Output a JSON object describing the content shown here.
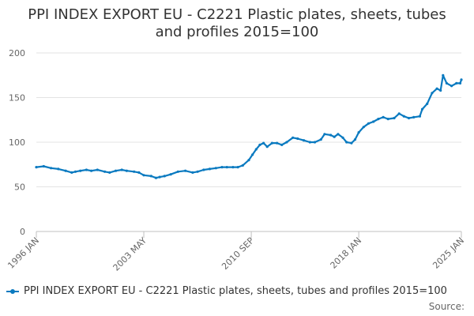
{
  "chart_data": {
    "type": "line",
    "title": "PPI INDEX EXPORT EU - C2221 Plastic plates, sheets, tubes and profiles 2015=100",
    "title_lines": [
      "PPI INDEX EXPORT EU - C2221 Plastic plates, sheets, tubes",
      "and profiles 2015=100"
    ],
    "xlabel": "",
    "ylabel": "",
    "ylim": [
      0,
      200
    ],
    "yticks": [
      "0",
      "50",
      "100",
      "150",
      "200"
    ],
    "xlim": [
      "1996-01",
      "2025-01"
    ],
    "xticks": [
      {
        "label": "1996 JAN",
        "date": "1996-01"
      },
      {
        "label": "2003 MAY",
        "date": "2003-05"
      },
      {
        "label": "2010 SEP",
        "date": "2010-09"
      },
      {
        "label": "2018 JAN",
        "date": "2018-01"
      },
      {
        "label": "2025 JAN",
        "date": "2025-01"
      }
    ],
    "grid": true,
    "legend_position": "bottom",
    "series": [
      {
        "name": "PPI INDEX EXPORT EU - C2221 Plastic plates, sheets, tubes and profiles 2015=100",
        "color": "#0a7ac0",
        "points": [
          [
            "1996-01",
            72
          ],
          [
            "1996-07",
            73
          ],
          [
            "1997-01",
            71
          ],
          [
            "1997-07",
            70
          ],
          [
            "1998-01",
            68
          ],
          [
            "1998-06",
            66
          ],
          [
            "1998-09",
            67
          ],
          [
            "1999-01",
            68
          ],
          [
            "1999-06",
            69
          ],
          [
            "1999-10",
            68
          ],
          [
            "2000-03",
            69
          ],
          [
            "2000-09",
            67
          ],
          [
            "2001-01",
            66
          ],
          [
            "2001-06",
            68
          ],
          [
            "2001-11",
            69
          ],
          [
            "2002-03",
            68
          ],
          [
            "2002-09",
            67
          ],
          [
            "2003-01",
            66
          ],
          [
            "2003-05",
            63
          ],
          [
            "2003-11",
            62
          ],
          [
            "2004-03",
            60
          ],
          [
            "2004-06",
            61
          ],
          [
            "2004-10",
            62
          ],
          [
            "2005-03",
            64
          ],
          [
            "2005-09",
            67
          ],
          [
            "2006-03",
            68
          ],
          [
            "2006-09",
            66
          ],
          [
            "2007-01",
            67
          ],
          [
            "2007-06",
            69
          ],
          [
            "2007-11",
            70
          ],
          [
            "2008-04",
            71
          ],
          [
            "2008-09",
            72
          ],
          [
            "2009-01",
            72
          ],
          [
            "2009-06",
            72
          ],
          [
            "2009-10",
            72
          ],
          [
            "2010-02",
            74
          ],
          [
            "2010-07",
            80
          ],
          [
            "2010-10",
            86
          ],
          [
            "2011-01",
            92
          ],
          [
            "2011-04",
            97
          ],
          [
            "2011-07",
            99
          ],
          [
            "2011-10",
            95
          ],
          [
            "2012-02",
            99
          ],
          [
            "2012-06",
            99
          ],
          [
            "2012-10",
            97
          ],
          [
            "2013-02",
            100
          ],
          [
            "2013-07",
            105
          ],
          [
            "2013-11",
            104
          ],
          [
            "2014-04",
            102
          ],
          [
            "2014-09",
            100
          ],
          [
            "2015-01",
            100
          ],
          [
            "2015-06",
            103
          ],
          [
            "2015-09",
            109
          ],
          [
            "2016-02",
            108
          ],
          [
            "2016-05",
            106
          ],
          [
            "2016-08",
            109
          ],
          [
            "2016-12",
            105
          ],
          [
            "2017-03",
            100
          ],
          [
            "2017-07",
            99
          ],
          [
            "2017-10",
            103
          ],
          [
            "2018-01",
            111
          ],
          [
            "2018-05",
            117
          ],
          [
            "2018-09",
            121
          ],
          [
            "2019-01",
            123
          ],
          [
            "2019-05",
            126
          ],
          [
            "2019-09",
            128
          ],
          [
            "2020-01",
            126
          ],
          [
            "2020-06",
            127
          ],
          [
            "2020-10",
            132
          ],
          [
            "2021-02",
            129
          ],
          [
            "2021-06",
            127
          ],
          [
            "2021-10",
            128
          ],
          [
            "2022-03",
            129
          ],
          [
            "2022-05",
            137
          ],
          [
            "2022-09",
            143
          ],
          [
            "2023-01",
            155
          ],
          [
            "2023-05",
            160
          ],
          [
            "2023-08",
            158
          ],
          [
            "2023-10",
            175
          ],
          [
            "2024-01",
            166
          ],
          [
            "2024-05",
            163
          ],
          [
            "2024-09",
            166
          ],
          [
            "2024-12",
            166
          ],
          [
            "2025-01",
            170
          ]
        ]
      }
    ]
  },
  "legend": {
    "label": "PPI INDEX EXPORT EU - C2221 Plastic plates, sheets, tubes and profiles 2015=100"
  },
  "source_label": "Source:"
}
